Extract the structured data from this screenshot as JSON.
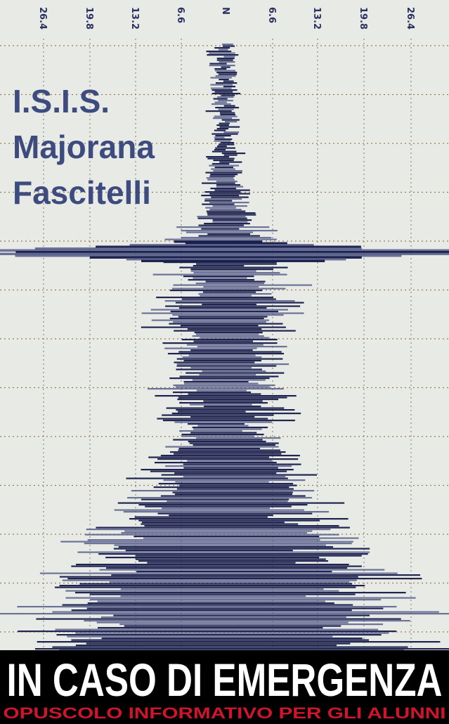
{
  "scale_labels": [
    "26.4",
    "19.8",
    "13.2",
    "6.6",
    "N",
    "6.6",
    "13.2",
    "19.8",
    "26.4"
  ],
  "school": [
    "I.S.I.S.",
    "Majorana",
    "Fascitelli"
  ],
  "footer": {
    "title": "IN CASO DI EMERGENZA",
    "subtitle": "OPUSCOLO INFORMATIVO PER GLI ALUNNI"
  }
}
